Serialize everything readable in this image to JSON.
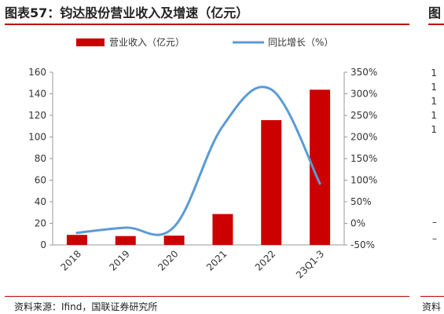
{
  "page": {
    "title": "图表57：钧达股份营业收入及增速（亿元）",
    "title_right": "图",
    "source": "资料来源：Ifind，国联证券研究所",
    "source_right": "资料"
  },
  "colors": {
    "bar": "#cc0000",
    "line": "#5b9bd5",
    "accent": "#c00000",
    "axis": "#999999"
  },
  "chart_data": {
    "type": "bar",
    "categories": [
      "2018",
      "2019",
      "2020",
      "2021",
      "2022",
      "23Q1-3"
    ],
    "series": [
      {
        "name": "营业收入（亿元）",
        "type": "bar",
        "axis": "left",
        "values": [
          9.3,
          8.2,
          8.6,
          28.6,
          115.6,
          143.8
        ]
      },
      {
        "name": "同比增长（%）",
        "type": "line",
        "axis": "right",
        "values": [
          -22,
          -10,
          -8,
          225,
          310,
          92
        ]
      }
    ],
    "y_left": {
      "ylim": [
        0,
        160
      ],
      "ticks": [
        "0",
        "20",
        "40",
        "60",
        "80",
        "100",
        "120",
        "140",
        "160"
      ]
    },
    "y_right": {
      "ylim": [
        -50,
        350
      ],
      "ticks": [
        "-50%",
        "0%",
        "50%",
        "100%",
        "150%",
        "200%",
        "250%",
        "300%",
        "350%"
      ]
    },
    "legend": {
      "position": "top"
    },
    "grid": false
  },
  "right_fragment": {
    "ticks": [
      "1",
      "1",
      "1",
      "1",
      "1",
      "–",
      "–"
    ]
  }
}
